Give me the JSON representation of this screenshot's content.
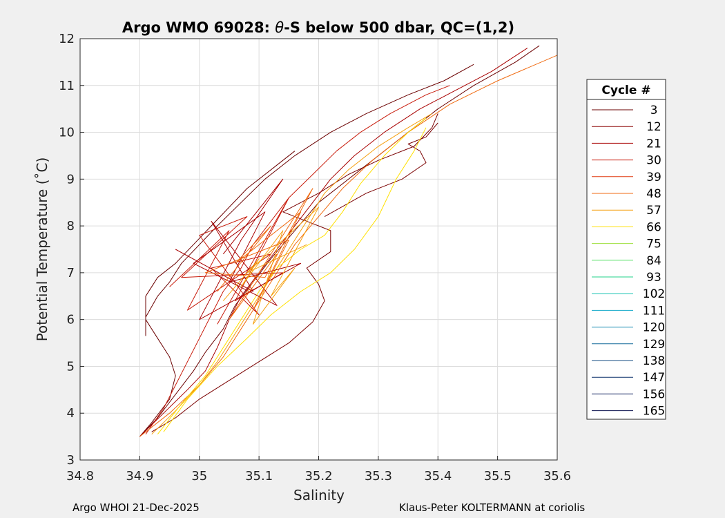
{
  "chart_data": {
    "type": "line",
    "title_prefix": "Argo WMO 69028: ",
    "title_theta": "θ",
    "title_suffix": "-S below 500 dbar,  QC=(1,2)",
    "xlabel": "Salinity",
    "ylabel": "Potential Temperature (˚C)",
    "xlim": [
      34.8,
      35.6
    ],
    "ylim": [
      3,
      12
    ],
    "xticks": [
      "34.8",
      "34.9",
      "35",
      "35.1",
      "35.2",
      "35.3",
      "35.4",
      "35.5",
      "35.6"
    ],
    "yticks": [
      "3",
      "4",
      "5",
      "6",
      "7",
      "8",
      "9",
      "10",
      "11",
      "12"
    ],
    "grid": true,
    "legend": {
      "title": "Cycle #",
      "position": "right",
      "entries": [
        {
          "label": "3",
          "color": "#6b0000"
        },
        {
          "label": "12",
          "color": "#8a0000"
        },
        {
          "label": "21",
          "color": "#a80000"
        },
        {
          "label": "30",
          "color": "#c81a0a"
        },
        {
          "label": "39",
          "color": "#e03a10"
        },
        {
          "label": "48",
          "color": "#f06a10"
        },
        {
          "label": "57",
          "color": "#f5a010"
        },
        {
          "label": "66",
          "color": "#ffe000"
        },
        {
          "label": "75",
          "color": "#a0e040"
        },
        {
          "label": "84",
          "color": "#50e060"
        },
        {
          "label": "93",
          "color": "#20d08a"
        },
        {
          "label": "102",
          "color": "#10c0b0"
        },
        {
          "label": "111",
          "color": "#10a8c8"
        },
        {
          "label": "120",
          "color": "#1088b0"
        },
        {
          "label": "129",
          "color": "#106898"
        },
        {
          "label": "138",
          "color": "#104a80"
        },
        {
          "label": "147",
          "color": "#0a2e68"
        },
        {
          "label": "156",
          "color": "#061858"
        },
        {
          "label": "165",
          "color": "#020a48"
        }
      ]
    },
    "series": [
      {
        "name": "dark-red profiles",
        "color": "#6b0000",
        "points": [
          [
            34.9,
            3.5
          ],
          [
            34.93,
            3.9
          ],
          [
            34.96,
            4.4
          ],
          [
            34.99,
            4.9
          ],
          [
            35.01,
            5.3
          ],
          [
            35.04,
            5.8
          ],
          [
            35.06,
            6.3
          ],
          [
            35.09,
            6.8
          ],
          [
            35.12,
            7.3
          ],
          [
            35.16,
            7.9
          ],
          [
            35.2,
            8.5
          ],
          [
            35.27,
            9.2
          ],
          [
            35.34,
            9.9
          ],
          [
            35.4,
            10.5
          ],
          [
            35.46,
            11.0
          ],
          [
            35.53,
            11.5
          ],
          [
            35.57,
            11.85
          ]
        ]
      },
      {
        "name": "dark-red profiles",
        "color": "#6b0000",
        "points": [
          [
            34.9,
            3.5
          ],
          [
            34.92,
            3.8
          ],
          [
            34.95,
            4.3
          ],
          [
            34.96,
            4.8
          ],
          [
            34.95,
            5.2
          ],
          [
            34.93,
            5.6
          ],
          [
            34.91,
            6.0
          ],
          [
            34.91,
            6.5
          ],
          [
            34.93,
            6.9
          ],
          [
            34.96,
            7.2
          ],
          [
            34.99,
            7.6
          ],
          [
            35.02,
            8.0
          ],
          [
            35.05,
            8.4
          ],
          [
            35.08,
            8.8
          ],
          [
            35.12,
            9.2
          ],
          [
            35.16,
            9.6
          ]
        ]
      },
      {
        "name": "dark-red profiles",
        "color": "#6b0000",
        "points": [
          [
            34.91,
            5.65
          ],
          [
            34.91,
            6.05
          ],
          [
            34.93,
            6.5
          ],
          [
            34.95,
            6.8
          ],
          [
            34.97,
            7.2
          ],
          [
            35.0,
            7.6
          ],
          [
            35.03,
            8.0
          ],
          [
            35.07,
            8.5
          ],
          [
            35.11,
            9.0
          ],
          [
            35.16,
            9.5
          ],
          [
            35.22,
            10.0
          ],
          [
            35.28,
            10.4
          ],
          [
            35.35,
            10.8
          ],
          [
            35.41,
            11.1
          ],
          [
            35.46,
            11.45
          ]
        ]
      },
      {
        "name": "dark-red profiles",
        "color": "#7a0000",
        "points": [
          [
            34.92,
            3.6
          ],
          [
            34.96,
            3.9
          ],
          [
            35.0,
            4.3
          ],
          [
            35.05,
            4.7
          ],
          [
            35.1,
            5.1
          ],
          [
            35.15,
            5.5
          ],
          [
            35.19,
            5.95
          ],
          [
            35.21,
            6.4
          ],
          [
            35.2,
            6.75
          ],
          [
            35.18,
            7.1
          ],
          [
            35.22,
            7.45
          ],
          [
            35.22,
            7.9
          ],
          [
            35.18,
            8.1
          ],
          [
            35.14,
            8.3
          ],
          [
            35.2,
            8.7
          ],
          [
            35.25,
            9.1
          ],
          [
            35.3,
            9.4
          ],
          [
            35.36,
            9.7
          ],
          [
            35.39,
            10.1
          ],
          [
            35.4,
            10.4
          ]
        ]
      },
      {
        "name": "dark-red profiles",
        "color": "#7a0000",
        "points": [
          [
            35.21,
            8.2
          ],
          [
            35.28,
            8.7
          ],
          [
            35.34,
            9.0
          ],
          [
            35.38,
            9.35
          ],
          [
            35.37,
            9.6
          ],
          [
            35.35,
            9.75
          ],
          [
            35.38,
            9.9
          ],
          [
            35.4,
            10.2
          ]
        ]
      },
      {
        "name": "red profiles",
        "color": "#a80000",
        "points": [
          [
            34.9,
            3.5
          ],
          [
            34.94,
            4.0
          ],
          [
            34.98,
            4.5
          ],
          [
            35.01,
            4.9
          ],
          [
            35.03,
            5.4
          ],
          [
            35.05,
            6.0
          ],
          [
            35.07,
            6.5
          ],
          [
            35.1,
            7.0
          ],
          [
            35.13,
            7.5
          ],
          [
            35.16,
            8.0
          ],
          [
            35.19,
            8.5
          ],
          [
            35.22,
            9.0
          ],
          [
            35.26,
            9.5
          ],
          [
            35.31,
            10.0
          ],
          [
            35.37,
            10.5
          ],
          [
            35.43,
            10.9
          ],
          [
            35.49,
            11.3
          ],
          [
            35.55,
            11.8
          ]
        ]
      },
      {
        "name": "red profiles",
        "color": "#c81a0a",
        "points": [
          [
            34.91,
            3.55
          ],
          [
            34.94,
            4.1
          ],
          [
            34.96,
            4.6
          ],
          [
            34.98,
            5.1
          ],
          [
            35.0,
            5.6
          ],
          [
            35.02,
            6.1
          ],
          [
            35.04,
            6.6
          ],
          [
            35.07,
            7.1
          ],
          [
            35.09,
            7.6
          ],
          [
            35.12,
            8.1
          ],
          [
            35.15,
            8.6
          ],
          [
            35.19,
            9.1
          ],
          [
            35.23,
            9.6
          ],
          [
            35.27,
            10.0
          ],
          [
            35.32,
            10.4
          ],
          [
            35.38,
            10.8
          ],
          [
            35.42,
            11.0
          ]
        ]
      },
      {
        "name": "orange profiles",
        "color": "#f06a10",
        "points": [
          [
            34.9,
            3.5
          ],
          [
            34.95,
            4.0
          ],
          [
            35.0,
            4.6
          ],
          [
            35.04,
            5.2
          ],
          [
            35.07,
            5.8
          ],
          [
            35.1,
            6.4
          ],
          [
            35.13,
            7.0
          ],
          [
            35.16,
            7.6
          ],
          [
            35.2,
            8.2
          ],
          [
            35.24,
            8.8
          ],
          [
            35.29,
            9.4
          ],
          [
            35.35,
            10.0
          ],
          [
            35.42,
            10.6
          ],
          [
            35.5,
            11.1
          ],
          [
            35.61,
            11.7
          ]
        ]
      },
      {
        "name": "orange profiles",
        "color": "#f5a010",
        "points": [
          [
            34.92,
            3.55
          ],
          [
            34.96,
            4.05
          ],
          [
            35.0,
            4.6
          ],
          [
            35.03,
            5.1
          ],
          [
            35.06,
            5.7
          ],
          [
            35.09,
            6.3
          ],
          [
            35.12,
            6.9
          ],
          [
            35.15,
            7.5
          ],
          [
            35.18,
            8.1
          ],
          [
            35.21,
            8.7
          ],
          [
            35.25,
            9.2
          ],
          [
            35.3,
            9.7
          ],
          [
            35.35,
            10.1
          ],
          [
            35.39,
            10.4
          ]
        ]
      },
      {
        "name": "yellow profiles",
        "color": "#ffe000",
        "points": [
          [
            34.93,
            3.55
          ],
          [
            34.97,
            4.2
          ],
          [
            35.01,
            4.8
          ],
          [
            35.04,
            5.4
          ],
          [
            35.07,
            6.0
          ],
          [
            35.1,
            6.6
          ],
          [
            35.13,
            7.1
          ],
          [
            35.17,
            7.5
          ],
          [
            35.21,
            7.8
          ],
          [
            35.24,
            8.3
          ],
          [
            35.27,
            8.9
          ],
          [
            35.31,
            9.5
          ],
          [
            35.35,
            10.0
          ],
          [
            35.38,
            10.3
          ]
        ]
      },
      {
        "name": "yellow profiles",
        "color": "#ffe000",
        "points": [
          [
            34.94,
            3.6
          ],
          [
            34.98,
            4.3
          ],
          [
            35.03,
            5.0
          ],
          [
            35.08,
            5.6
          ],
          [
            35.12,
            6.1
          ],
          [
            35.17,
            6.6
          ],
          [
            35.22,
            7.0
          ],
          [
            35.26,
            7.5
          ],
          [
            35.3,
            8.2
          ],
          [
            35.33,
            9.0
          ],
          [
            35.36,
            9.6
          ],
          [
            35.38,
            10.1
          ]
        ]
      },
      {
        "name": "red scatter",
        "color": "#c81a0a",
        "points": [
          [
            34.95,
            6.7
          ],
          [
            35.05,
            7.9
          ],
          [
            34.98,
            6.2
          ],
          [
            35.12,
            7.4
          ],
          [
            35.02,
            7.1
          ],
          [
            35.1,
            6.1
          ],
          [
            35.0,
            7.8
          ],
          [
            35.08,
            8.2
          ],
          [
            34.97,
            6.9
          ],
          [
            35.14,
            7.0
          ],
          [
            35.06,
            6.4
          ],
          [
            35.15,
            8.6
          ],
          [
            35.03,
            5.9
          ]
        ]
      },
      {
        "name": "red scatter",
        "color": "#a80000",
        "points": [
          [
            34.96,
            7.5
          ],
          [
            35.09,
            6.6
          ],
          [
            35.02,
            8.1
          ],
          [
            35.13,
            6.3
          ],
          [
            34.99,
            7.2
          ],
          [
            35.11,
            8.3
          ],
          [
            35.05,
            6.8
          ],
          [
            35.17,
            7.2
          ],
          [
            35.0,
            6.0
          ],
          [
            35.07,
            7.7
          ],
          [
            35.14,
            9.0
          ],
          [
            35.04,
            7.4
          ]
        ]
      },
      {
        "name": "orange scatter",
        "color": "#f06a10",
        "points": [
          [
            35.03,
            6.6
          ],
          [
            35.12,
            8.0
          ],
          [
            35.06,
            7.2
          ],
          [
            35.17,
            8.3
          ],
          [
            35.09,
            6.2
          ],
          [
            35.15,
            7.7
          ],
          [
            35.01,
            7.0
          ],
          [
            35.11,
            6.9
          ],
          [
            35.19,
            8.8
          ],
          [
            35.05,
            6.0
          ],
          [
            35.13,
            7.4
          ]
        ]
      },
      {
        "name": "yellow scatter",
        "color": "#f5a010",
        "points": [
          [
            35.04,
            6.4
          ],
          [
            35.1,
            7.3
          ],
          [
            35.07,
            6.7
          ],
          [
            35.14,
            7.9
          ],
          [
            35.09,
            5.9
          ],
          [
            35.16,
            7.1
          ],
          [
            35.12,
            6.5
          ],
          [
            35.2,
            8.4
          ],
          [
            35.08,
            7.0
          ],
          [
            35.18,
            7.6
          ]
        ]
      }
    ]
  },
  "footer": {
    "left": "Argo WHOI 21-Dec-2025",
    "right": "Klaus-Peter KOLTERMANN at coriolis"
  }
}
